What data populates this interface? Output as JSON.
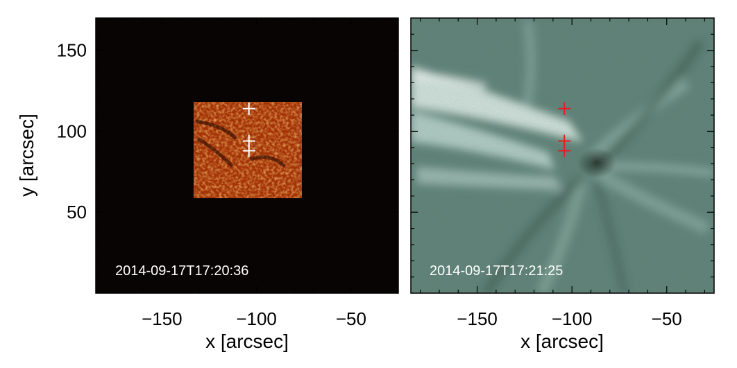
{
  "figure": {
    "y_axis_label": "y [arcsec]",
    "panels": [
      {
        "name": "left",
        "x_axis_label": "x [arcsec]",
        "timestamp": "2014-09-17T17:20:36",
        "background_color": "#080404",
        "inset_color": "#a33206",
        "marker_color": "#ffffff",
        "markers": [
          {
            "x": -104,
            "y": 114
          },
          {
            "x": -104,
            "y": 94
          },
          {
            "x": -104,
            "y": 88
          }
        ]
      },
      {
        "name": "right",
        "x_axis_label": "x [arcsec]",
        "timestamp": "2014-09-17T17:21:25",
        "background_color": "#5c7f74",
        "marker_color": "#e02020",
        "markers": [
          {
            "x": -104,
            "y": 114
          },
          {
            "x": -104,
            "y": 94
          },
          {
            "x": -104,
            "y": 88
          }
        ]
      }
    ],
    "x_ticks": [
      {
        "value": -150,
        "label": "−150"
      },
      {
        "value": -100,
        "label": "−100"
      },
      {
        "value": -50,
        "label": "−50"
      }
    ],
    "y_ticks": [
      {
        "value": 50,
        "label": "50"
      },
      {
        "value": 100,
        "label": "100"
      },
      {
        "value": 150,
        "label": "150"
      }
    ],
    "x_range": [
      -185,
      -25
    ],
    "y_range": [
      0,
      170
    ]
  }
}
